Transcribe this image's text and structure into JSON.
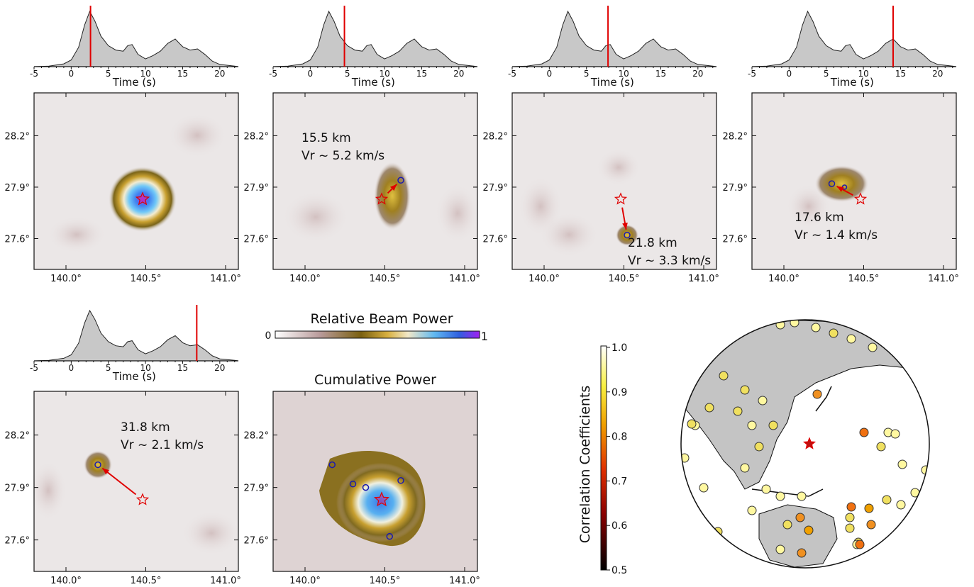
{
  "x_ticks_time": [
    "-5",
    "0",
    "5",
    "10",
    "15",
    "20"
  ],
  "time_label": "Time (s)",
  "lon_ticks": [
    "140.0°",
    "140.5°",
    "141.0°"
  ],
  "lat_ticks": [
    "28.2°",
    "27.9°",
    "27.6°"
  ],
  "colorbar_beam": {
    "title": "Relative Beam Power",
    "min_label": "0",
    "max_label": "1"
  },
  "cumulative_title": "Cumulative Power",
  "colorbar_corr": {
    "title": "Correlation Coefficients",
    "ticks": [
      "1.0",
      "0.9",
      "0.8",
      "0.7",
      "0.6",
      "0.5"
    ]
  },
  "colors": {
    "marker": "#e00000",
    "circle": "#1a1ab0",
    "fill": "#c8c8c8"
  },
  "chart_data": [
    {
      "type": "area",
      "name": "beam panel 1",
      "marker_time": 2.6,
      "peak": {
        "lon": 140.5,
        "lat": 27.83
      },
      "annotation_lines": []
    },
    {
      "type": "area",
      "name": "beam panel 2",
      "marker_time": 4.6,
      "peak": {
        "lon": 140.6,
        "lat": 27.94
      },
      "annotation_lines": [
        "15.5 km",
        "Vr ~ 5.2 km/s"
      ]
    },
    {
      "type": "area",
      "name": "beam panel 3",
      "marker_time": 7.9,
      "peak": {
        "lon": 140.52,
        "lat": 27.62
      },
      "annotation_lines": [
        "21.8 km",
        "Vr ~ 3.3 km/s"
      ]
    },
    {
      "type": "area",
      "name": "beam panel 4",
      "marker_time": 14.0,
      "peak": {
        "lon": 140.3,
        "lat": 27.92
      },
      "annotation_lines": [
        "17.6 km",
        "Vr ~ 1.4 km/s"
      ]
    },
    {
      "type": "area",
      "name": "beam panel 5",
      "marker_time": 16.9,
      "peak": {
        "lon": 140.2,
        "lat": 28.03
      },
      "annotation_lines": [
        "31.8 km",
        "Vr ~ 2.1 km/s"
      ]
    }
  ],
  "epicenter": {
    "lon": 140.48,
    "lat": 27.83
  },
  "cumulative_circles": [
    {
      "lon": 140.17,
      "lat": 28.03
    },
    {
      "lon": 140.3,
      "lat": 27.92
    },
    {
      "lon": 140.38,
      "lat": 27.9
    },
    {
      "lon": 140.6,
      "lat": 27.94
    },
    {
      "lon": 140.53,
      "lat": 27.62
    }
  ]
}
